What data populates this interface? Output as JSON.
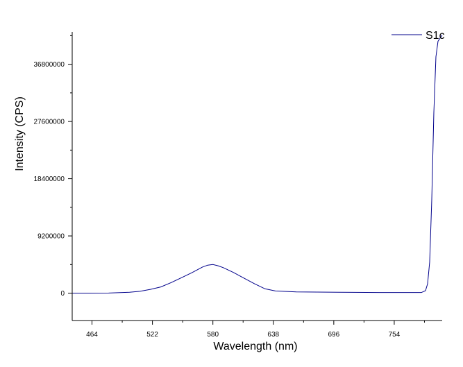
{
  "chart_data": {
    "type": "line",
    "xlabel": "Wavelength (nm)",
    "ylabel": "Intensity (CPS)",
    "x_ticks": [
      464,
      522,
      580,
      638,
      696,
      754
    ],
    "x_tick_labels": [
      "464",
      "522",
      "580",
      "638",
      "696",
      "754"
    ],
    "y_ticks": [
      0,
      9200000,
      18400000,
      27600000,
      36800000
    ],
    "y_tick_labels": [
      "0",
      "9200000",
      "18400000",
      "27600000",
      "36800000"
    ],
    "xlim": [
      445,
      800
    ],
    "ylim": [
      -4400000,
      42000000
    ],
    "grid": false,
    "legend_position": "top-right",
    "series": [
      {
        "name": "S1c",
        "color": "#00008b",
        "x": [
          445,
          480,
          500,
          510,
          520,
          530,
          540,
          550,
          560,
          570,
          575,
          580,
          585,
          590,
          600,
          610,
          620,
          630,
          640,
          660,
          700,
          740,
          780,
          784,
          786,
          788,
          790,
          792,
          794,
          796,
          800
        ],
        "y": [
          0,
          20000,
          150000,
          300000,
          600000,
          1000000,
          1700000,
          2500000,
          3300000,
          4200000,
          4500000,
          4600000,
          4400000,
          4100000,
          3300000,
          2400000,
          1500000,
          700000,
          350000,
          200000,
          150000,
          100000,
          100000,
          400000,
          1500000,
          5000000,
          15000000,
          29000000,
          38000000,
          40500000,
          41500000
        ]
      }
    ]
  }
}
